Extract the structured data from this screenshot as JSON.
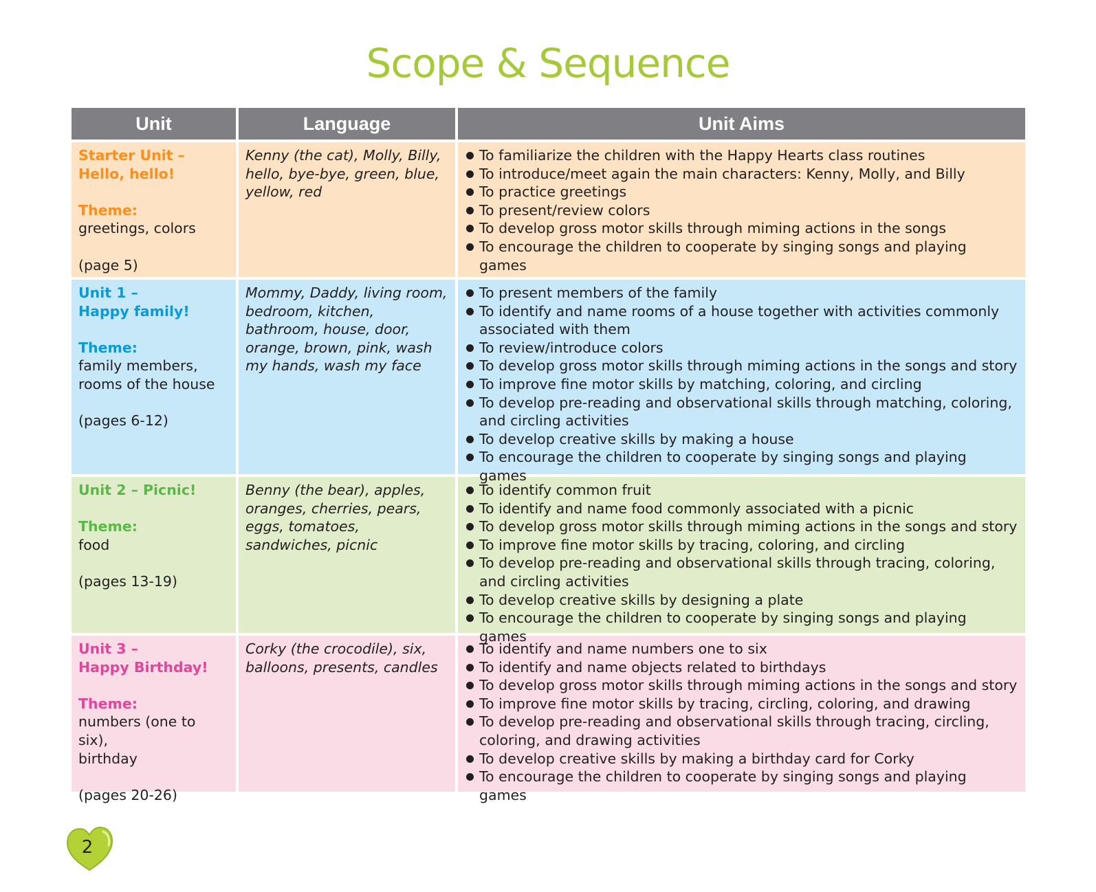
{
  "title": "Scope & Sequence",
  "headers": [
    "Unit",
    "Language",
    "Unit Aims"
  ],
  "colors": {
    "title": "#a6c93a",
    "header_bg": "#808084",
    "row_bg": [
      "#fde3c4",
      "#c7e8f8",
      "#e1ecca",
      "#fadce6"
    ],
    "unit_text": [
      "#f7901e",
      "#0a9ad6",
      "#5ab946",
      "#e0479a"
    ]
  },
  "rows": [
    {
      "unit_lines": [
        "Starter Unit –",
        "Hello, hello!"
      ],
      "theme_label": "Theme:",
      "theme_lines": [
        "greetings, colors"
      ],
      "pages": "(page 5)",
      "language": "Kenny (the cat), Molly, Billy, hello, bye-bye, green, blue, yellow, red",
      "aims": [
        "To familiarize the children with the Happy Hearts class routines",
        "To introduce/meet again the main characters: Kenny, Molly, and Billy",
        "To practice greetings",
        "To present/review colors",
        "To develop gross motor skills through miming actions in the songs",
        "To encourage the children to cooperate by singing songs and playing games"
      ]
    },
    {
      "unit_lines": [
        "Unit 1 –",
        "Happy family!"
      ],
      "theme_label": "Theme:",
      "theme_lines": [
        "family members,",
        "rooms of the house"
      ],
      "pages": "(pages 6-12)",
      "language": "Mommy, Daddy, living room, bedroom, kitchen, bathroom, house, door, orange, brown, pink, wash my hands, wash my face",
      "aims": [
        "To present members of the family",
        "To identify and name rooms of a house together with activities commonly associated with them",
        "To review/introduce colors",
        "To develop gross motor skills through miming actions in the songs and story",
        "To improve fine motor skills by matching, coloring, and circling",
        "To develop pre-reading and observational skills through matching, coloring, and circling activities",
        "To develop creative skills by making a house",
        "To encourage the children to cooperate by singing songs and playing games"
      ]
    },
    {
      "unit_lines": [
        "Unit 2 – Picnic!"
      ],
      "theme_label": "Theme:",
      "theme_lines": [
        "food"
      ],
      "pages": "(pages 13-19)",
      "language": "Benny (the bear), apples, oranges, cherries, pears, eggs, tomatoes, sandwiches, picnic",
      "aims": [
        "To identify common fruit",
        "To identify and name food commonly associated with a picnic",
        "To develop gross motor skills through miming actions in the songs and story",
        "To improve fine motor skills by tracing, coloring, and circling",
        "To develop pre-reading and observational skills through tracing, coloring, and circling activities",
        "To develop creative skills by designing a plate",
        "To encourage the children to cooperate by singing songs and playing games"
      ]
    },
    {
      "unit_lines": [
        "Unit 3 –",
        "Happy Birthday!"
      ],
      "theme_label": "Theme:",
      "theme_lines": [
        "numbers (one to six),",
        "birthday"
      ],
      "pages": "(pages 20-26)",
      "language": "Corky (the crocodile), six, balloons, presents, candles",
      "aims": [
        "To identify and name numbers one to six",
        "To identify and name objects related to birthdays",
        "To develop gross motor skills through miming actions in the songs and story",
        "To improve fine motor skills by tracing, circling, coloring, and drawing",
        "To develop pre-reading and observational skills through tracing, circling, coloring, and drawing activities",
        "To develop creative skills by making a birthday card for Corky",
        "To encourage the children to cooperate by singing songs and playing games"
      ]
    }
  ],
  "page_number": "2"
}
